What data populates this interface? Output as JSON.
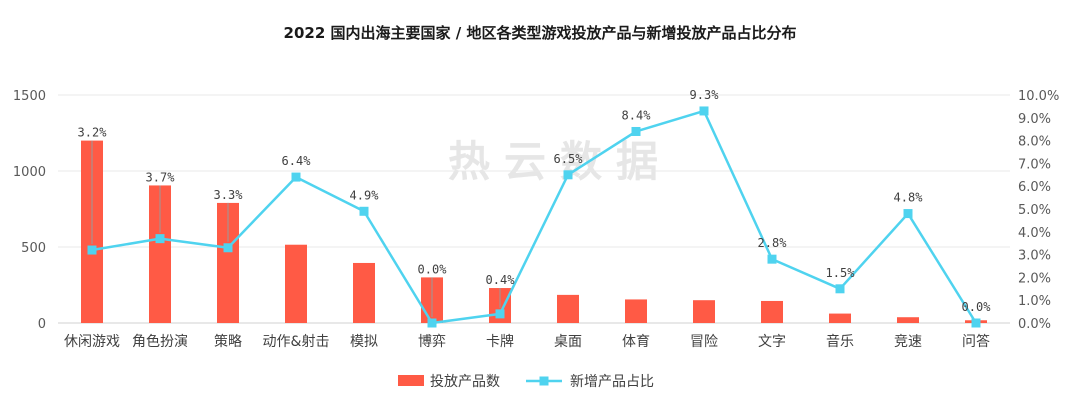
{
  "chart_data": {
    "type": "bar",
    "title": "2022 国内出海主要国家 / 地区各类型游戏投放产品与新增投放产品占比分布",
    "watermark": "热云数据",
    "categories": [
      "休闲游戏",
      "角色扮演",
      "策略",
      "动作&射击",
      "模拟",
      "博弈",
      "卡牌",
      "桌面",
      "体育",
      "冒险",
      "文字",
      "音乐",
      "竞速",
      "问答"
    ],
    "left_axis": {
      "ylim": [
        0,
        1500
      ],
      "ticks": [
        "0",
        "500",
        "1000",
        "1500"
      ]
    },
    "right_axis": {
      "ylim": [
        0,
        10
      ],
      "ticks": [
        "0.0%",
        "1.0%",
        "2.0%",
        "3.0%",
        "4.0%",
        "5.0%",
        "6.0%",
        "7.0%",
        "8.0%",
        "9.0%",
        "10.0%"
      ]
    },
    "grid": "horizontal",
    "legend_position": "bottom",
    "series": [
      {
        "name": "投放产品数",
        "type": "bar",
        "axis": "left",
        "color": "#ff5a45",
        "values": [
          1200,
          905,
          790,
          515,
          395,
          300,
          230,
          185,
          155,
          150,
          145,
          62,
          38,
          18
        ]
      },
      {
        "name": "新增产品占比",
        "type": "line",
        "axis": "right",
        "color": "#4fd3ef",
        "values": [
          3.2,
          3.7,
          3.3,
          6.4,
          4.9,
          0.0,
          0.4,
          6.5,
          8.4,
          9.3,
          2.8,
          1.5,
          4.8,
          0.0
        ],
        "labels": [
          "3.2%",
          "3.7%",
          "3.3%",
          "6.4%",
          "4.9%",
          "0.0%",
          "0.4%",
          "6.5%",
          "8.4%",
          "9.3%",
          "2.8%",
          "1.5%",
          "4.8%",
          "0.0%"
        ]
      }
    ]
  }
}
